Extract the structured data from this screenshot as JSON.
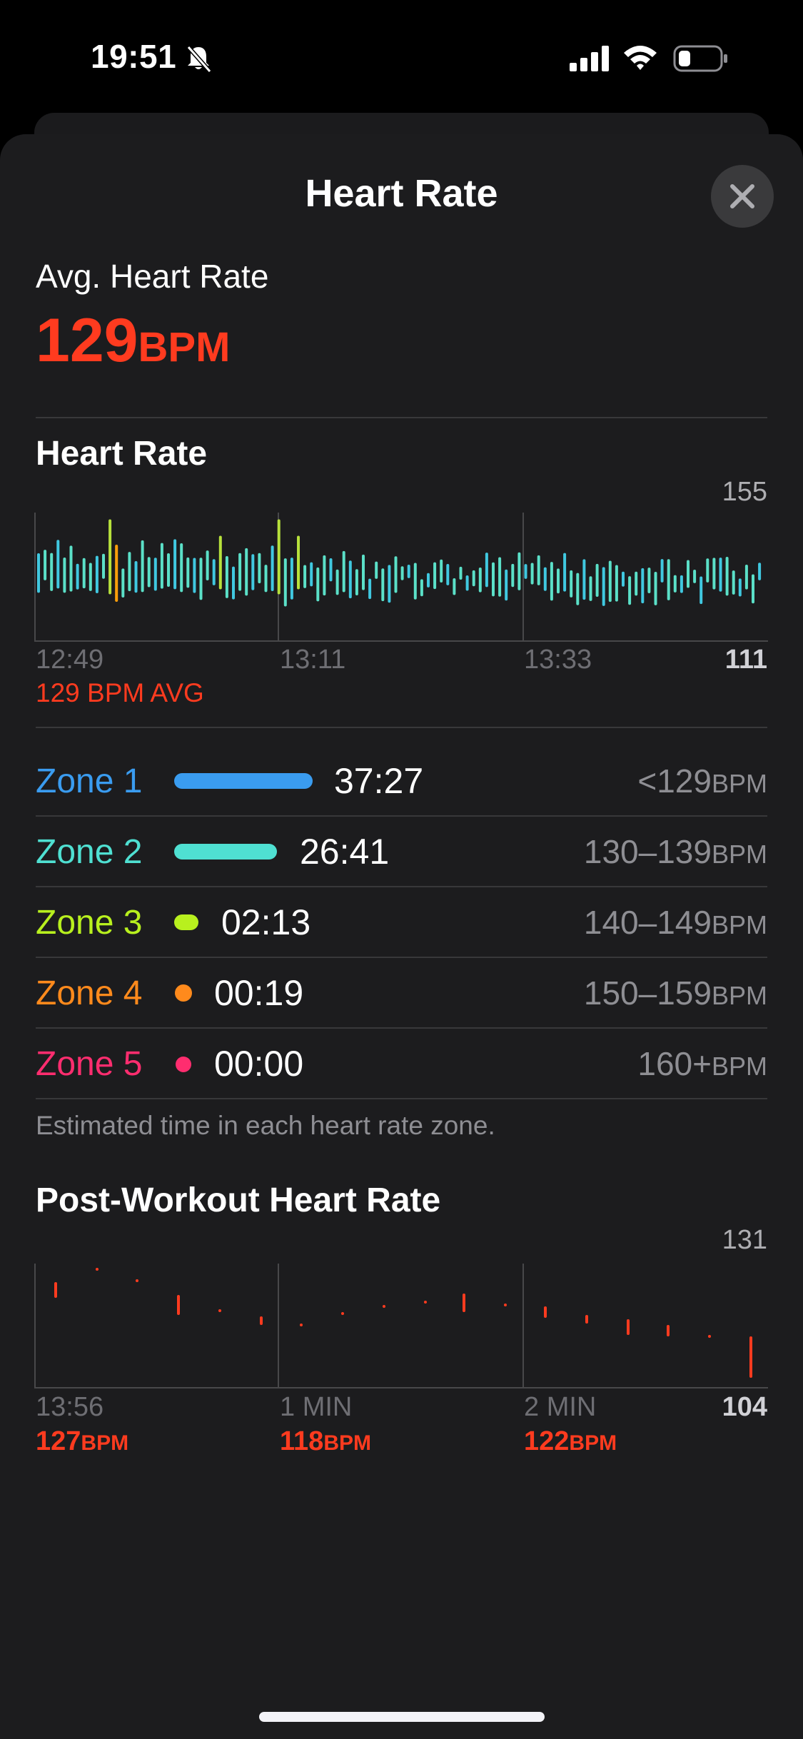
{
  "status_bar": {
    "time": "19:51"
  },
  "sheet": {
    "title": "Heart Rate"
  },
  "summary": {
    "label": "Avg. Heart Rate",
    "value": "129",
    "unit": "BPM"
  },
  "heart_rate_chart": {
    "title": "Heart Rate",
    "y_max_label": "155",
    "y_min_label": "111",
    "x_labels": [
      "12:49",
      "13:11",
      "13:33"
    ],
    "avg_label": "129 BPM AVG",
    "colors": {
      "zone1": "#40c8e0",
      "zone2": "#5be0c8",
      "zone3": "#b7e13c",
      "zone4": "#ff9f0a"
    }
  },
  "zones": [
    {
      "name": "Zone 1",
      "time": "37:27",
      "range": "<129",
      "unit": "BPM",
      "color": "#3a9cf0"
    },
    {
      "name": "Zone 2",
      "time": "26:41",
      "range": "130–139",
      "unit": "BPM",
      "color": "#4fe0d2"
    },
    {
      "name": "Zone 3",
      "time": "02:13",
      "range": "140–149",
      "unit": "BPM",
      "color": "#b8f01e"
    },
    {
      "name": "Zone 4",
      "time": "00:19",
      "range": "150–159",
      "unit": "BPM",
      "color": "#ff8a1c"
    },
    {
      "name": "Zone 5",
      "time": "00:00",
      "range": "160+",
      "unit": "BPM",
      "color": "#ff2d6f"
    }
  ],
  "zone_note": "Estimated time in each heart rate zone.",
  "post_workout": {
    "title": "Post-Workout Heart Rate",
    "y_max_label": "131",
    "y_min_label": "104",
    "x_labels": [
      "13:56",
      "1 MIN",
      "2 MIN"
    ],
    "values": [
      {
        "num": "127",
        "unit": "BPM"
      },
      {
        "num": "118",
        "unit": "BPM"
      },
      {
        "num": "122",
        "unit": "BPM"
      }
    ],
    "color": "#ff3b1f"
  }
}
